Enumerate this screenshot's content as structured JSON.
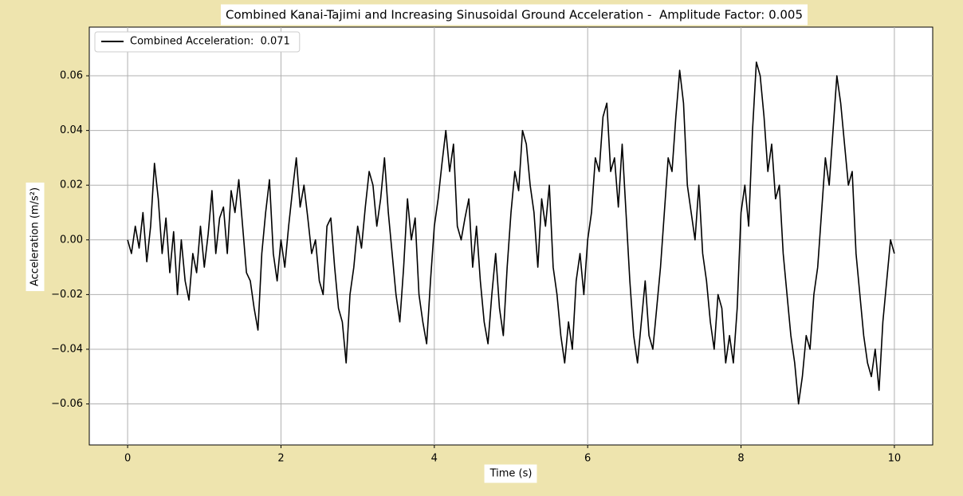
{
  "chart_data": {
    "type": "line",
    "title": "Combined Kanai-Tajimi and Increasing Sinusoidal Ground Acceleration -  Amplitude Factor: 0.005",
    "x_label": "Time (s)",
    "y_label": "Acceleration (m/s²)",
    "xlim": [
      -0.5,
      10.5
    ],
    "ylim": [
      -0.075,
      0.0778
    ],
    "xticks": [
      0,
      2,
      4,
      6,
      8,
      10
    ],
    "yticks": [
      {
        "value": -0.06,
        "label": "−0.06"
      },
      {
        "value": -0.04,
        "label": "−0.04"
      },
      {
        "value": -0.02,
        "label": "−0.02"
      },
      {
        "value": 0,
        "label": "0.00"
      },
      {
        "value": 0.02,
        "label": "0.02"
      },
      {
        "value": 0.04,
        "label": "0.04"
      },
      {
        "value": 0.06,
        "label": "0.06"
      }
    ],
    "grid": true,
    "legend": "upper left",
    "x": [
      0,
      0.05,
      0.1,
      0.15,
      0.2,
      0.25,
      0.3,
      0.35,
      0.4,
      0.45,
      0.5,
      0.55,
      0.6,
      0.65,
      0.7,
      0.75,
      0.8,
      0.85,
      0.9,
      0.95,
      1,
      1.05,
      1.1,
      1.15,
      1.2,
      1.25,
      1.3,
      1.35,
      1.4,
      1.45,
      1.5,
      1.55,
      1.6,
      1.65,
      1.7,
      1.75,
      1.8,
      1.85,
      1.9,
      1.95,
      2,
      2.05,
      2.1,
      2.15,
      2.2,
      2.25,
      2.3,
      2.35,
      2.4,
      2.45,
      2.5,
      2.55,
      2.6,
      2.65,
      2.7,
      2.75,
      2.8,
      2.85,
      2.9,
      2.95,
      3,
      3.05,
      3.1,
      3.15,
      3.2,
      3.25,
      3.3,
      3.35,
      3.4,
      3.45,
      3.5,
      3.55,
      3.6,
      3.65,
      3.7,
      3.75,
      3.8,
      3.85,
      3.9,
      3.95,
      4,
      4.05,
      4.1,
      4.15,
      4.2,
      4.25,
      4.3,
      4.35,
      4.4,
      4.45,
      4.5,
      4.55,
      4.6,
      4.65,
      4.7,
      4.75,
      4.8,
      4.85,
      4.9,
      4.95,
      5,
      5.05,
      5.1,
      5.15,
      5.2,
      5.25,
      5.3,
      5.35,
      5.4,
      5.45,
      5.5,
      5.55,
      5.6,
      5.65,
      5.7,
      5.75,
      5.8,
      5.85,
      5.9,
      5.95,
      6,
      6.05,
      6.1,
      6.15,
      6.2,
      6.25,
      6.3,
      6.35,
      6.4,
      6.45,
      6.5,
      6.55,
      6.6,
      6.65,
      6.7,
      6.75,
      6.8,
      6.85,
      6.9,
      6.95,
      7,
      7.05,
      7.1,
      7.15,
      7.2,
      7.25,
      7.3,
      7.35,
      7.4,
      7.45,
      7.5,
      7.55,
      7.6,
      7.65,
      7.7,
      7.75,
      7.8,
      7.85,
      7.9,
      7.95,
      8,
      8.05,
      8.1,
      8.15,
      8.2,
      8.25,
      8.3,
      8.35,
      8.4,
      8.45,
      8.5,
      8.55,
      8.6,
      8.65,
      8.7,
      8.75,
      8.8,
      8.85,
      8.9,
      8.95,
      9,
      9.05,
      9.1,
      9.15,
      9.2,
      9.25,
      9.3,
      9.35,
      9.4,
      9.45,
      9.5,
      9.55,
      9.6,
      9.65,
      9.7,
      9.75,
      9.8,
      9.85,
      9.9,
      9.95,
      10
    ],
    "series": [
      {
        "name": "Combined Acceleration:  0.071",
        "color": "#000000",
        "values": [
          0,
          -0.005,
          0.005,
          -0.003,
          0.01,
          -0.008,
          0.005,
          0.028,
          0.015,
          -0.005,
          0.008,
          -0.012,
          0.003,
          -0.02,
          0,
          -0.015,
          -0.022,
          -0.005,
          -0.012,
          0.005,
          -0.01,
          0.002,
          0.018,
          -0.005,
          0.008,
          0.012,
          -0.005,
          0.018,
          0.01,
          0.022,
          0.005,
          -0.012,
          -0.015,
          -0.025,
          -0.033,
          -0.005,
          0.01,
          0.022,
          -0.005,
          -0.015,
          0,
          -0.01,
          0.005,
          0.018,
          0.03,
          0.012,
          0.02,
          0.008,
          -0.005,
          0,
          -0.015,
          -0.02,
          0.005,
          0.008,
          -0.01,
          -0.025,
          -0.03,
          -0.045,
          -0.02,
          -0.01,
          0.005,
          -0.003,
          0.012,
          0.025,
          0.02,
          0.005,
          0.015,
          0.03,
          0.01,
          -0.005,
          -0.02,
          -0.03,
          -0.01,
          0.015,
          0,
          0.008,
          -0.02,
          -0.03,
          -0.038,
          -0.015,
          0.005,
          0.015,
          0.028,
          0.04,
          0.025,
          0.035,
          0.005,
          0,
          0.008,
          0.015,
          -0.01,
          0.005,
          -0.015,
          -0.03,
          -0.038,
          -0.02,
          -0.005,
          -0.025,
          -0.035,
          -0.01,
          0.01,
          0.025,
          0.018,
          0.04,
          0.035,
          0.02,
          0.01,
          -0.01,
          0.015,
          0.005,
          0.02,
          -0.01,
          -0.02,
          -0.035,
          -0.045,
          -0.03,
          -0.04,
          -0.015,
          -0.005,
          -0.02,
          0,
          0.01,
          0.03,
          0.025,
          0.045,
          0.05,
          0.025,
          0.03,
          0.012,
          0.035,
          0.01,
          -0.015,
          -0.035,
          -0.045,
          -0.03,
          -0.015,
          -0.035,
          -0.04,
          -0.025,
          -0.01,
          0.01,
          0.03,
          0.025,
          0.045,
          0.062,
          0.05,
          0.02,
          0.01,
          0,
          0.02,
          -0.005,
          -0.015,
          -0.03,
          -0.04,
          -0.02,
          -0.025,
          -0.045,
          -0.035,
          -0.045,
          -0.025,
          0.01,
          0.02,
          0.005,
          0.04,
          0.065,
          0.06,
          0.045,
          0.025,
          0.035,
          0.015,
          0.02,
          -0.005,
          -0.02,
          -0.035,
          -0.045,
          -0.06,
          -0.05,
          -0.035,
          -0.04,
          -0.02,
          -0.01,
          0.01,
          0.03,
          0.02,
          0.04,
          0.06,
          0.05,
          0.035,
          0.02,
          0.025,
          -0.005,
          -0.02,
          -0.035,
          -0.045,
          -0.05,
          -0.04,
          -0.055,
          -0.03,
          -0.015,
          0,
          -0.005
        ]
      }
    ]
  }
}
